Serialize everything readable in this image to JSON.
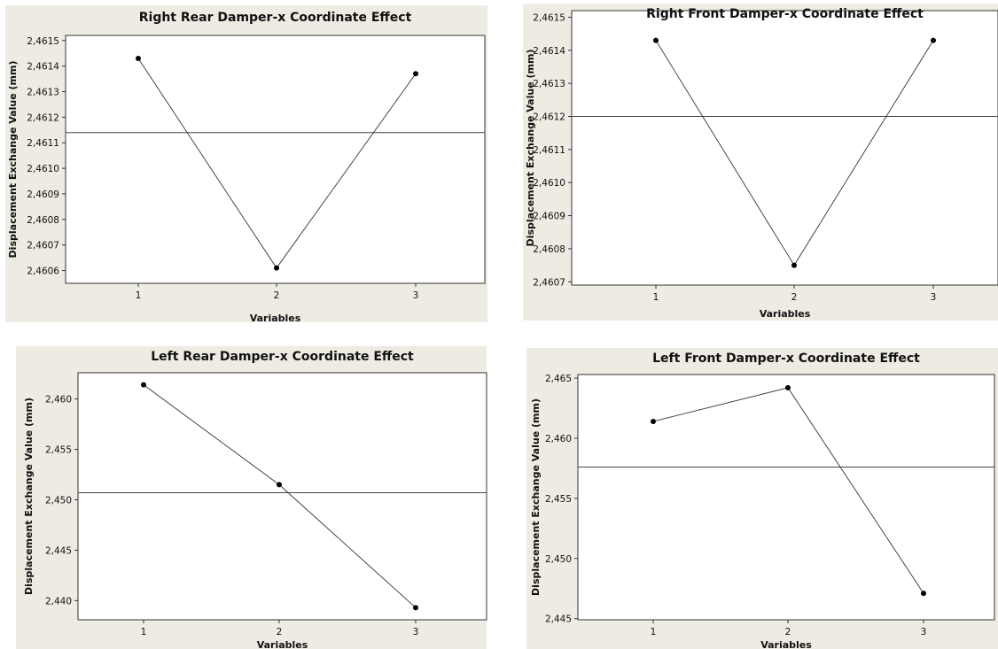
{
  "chart_data": [
    {
      "type": "line",
      "title": "Right  Rear Damper-x Coordinate Effect",
      "xlabel": "Variables",
      "ylabel": "Displacement Exchange Value (mm)",
      "categories": [
        "1",
        "2",
        "3"
      ],
      "values": [
        2.46143,
        2.46061,
        2.46137
      ],
      "mean": 2.46114,
      "ylim": [
        2.46055,
        2.46152
      ],
      "yticks": [
        "2,4606",
        "2,4607",
        "2,4608",
        "2,4609",
        "2,4610",
        "2,4611",
        "2,4612",
        "2,4613",
        "2,4614",
        "2,4615"
      ],
      "ytick_values": [
        2.4606,
        2.4607,
        2.4608,
        2.4609,
        2.461,
        2.4611,
        2.4612,
        2.4613,
        2.4614,
        2.4615
      ],
      "grid": false,
      "legend": "none"
    },
    {
      "type": "line",
      "title": "Right Front Damper-x Coordinate Effect",
      "xlabel": "Variables",
      "ylabel": "Displacement Exchange Value (mm)",
      "categories": [
        "1",
        "2",
        "3"
      ],
      "values": [
        2.46143,
        2.46075,
        2.46143
      ],
      "mean": 2.4612,
      "ylim": [
        2.46069,
        2.46152
      ],
      "yticks": [
        "2,4607",
        "2,4608",
        "2,4609",
        "2,4610",
        "2,4611",
        "2,4612",
        "2,4613",
        "2,4614",
        "2,4615"
      ],
      "ytick_values": [
        2.4607,
        2.4608,
        2.4609,
        2.461,
        2.4611,
        2.4612,
        2.4613,
        2.4614,
        2.4615
      ],
      "grid": false,
      "legend": "none"
    },
    {
      "type": "line",
      "title": "Left Rear Damper-x Coordinate Effect",
      "xlabel": "Variables",
      "ylabel": "Displacement Exchange Value (mm)",
      "categories": [
        "1",
        "2",
        "3"
      ],
      "values": [
        2.4614,
        2.4515,
        2.4393
      ],
      "mean": 2.4507,
      "ylim": [
        2.4381,
        2.4626
      ],
      "yticks": [
        "2,440",
        "2,445",
        "2,450",
        "2,455",
        "2,460"
      ],
      "ytick_values": [
        2.44,
        2.445,
        2.45,
        2.455,
        2.46
      ],
      "grid": false,
      "legend": "none"
    },
    {
      "type": "line",
      "title": "Left Front Damper-x Coordinate Effect",
      "xlabel": "Variables",
      "ylabel": "Displacement Exchange Value (mm)",
      "categories": [
        "1",
        "2",
        "3"
      ],
      "values": [
        2.4614,
        2.4642,
        2.4471
      ],
      "mean": 2.4576,
      "ylim": [
        2.4449,
        2.4653
      ],
      "yticks": [
        "2,445",
        "2,450",
        "2,455",
        "2,460",
        "2,465"
      ],
      "ytick_values": [
        2.445,
        2.45,
        2.455,
        2.46,
        2.465
      ],
      "grid": false,
      "legend": "none"
    }
  ]
}
